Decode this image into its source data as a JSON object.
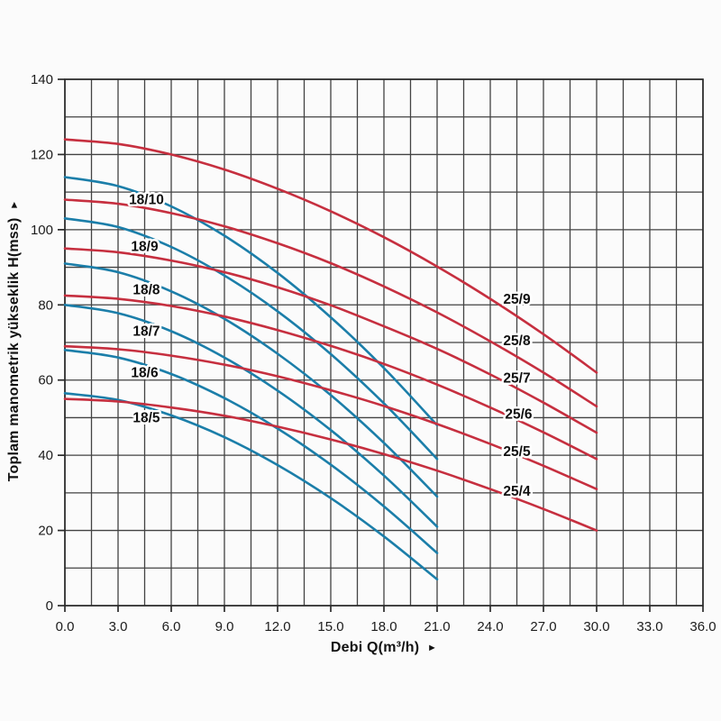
{
  "colors": {
    "family_18": "#1b7ea9",
    "family_25": "#c62f3f",
    "grid": "#424242",
    "axis": "#2b2b2b",
    "tick_text": "#1c1c1c",
    "curve_label_text": "#101010",
    "curve_label_halo": "#ffffff",
    "background": "#fbfbfb"
  },
  "chart_data": {
    "type": "line",
    "title": "",
    "xlabel": "Debi Q(m³/h)",
    "xlabel_arrow": "►",
    "ylabel": "Toplam manometrik yükseklik H(mss)",
    "ylabel_arrow": "►",
    "xlim": [
      0,
      36
    ],
    "ylim": [
      0,
      140
    ],
    "grid": true,
    "x_minor_step": 1.5,
    "y_minor_step": 10,
    "x_tick_values": [
      0,
      3,
      6,
      9,
      12,
      15,
      18,
      21,
      24,
      27,
      30,
      33,
      36
    ],
    "x_tick_labels": [
      "0.0",
      "3.0",
      "6.0",
      "9.0",
      "12.0",
      "15.0",
      "18.0",
      "21.0",
      "24.0",
      "27.0",
      "30.0",
      "33.0",
      "36.0"
    ],
    "y_tick_values": [
      0,
      20,
      40,
      60,
      80,
      100,
      120,
      140
    ],
    "y_tick_labels": [
      "0",
      "20",
      "40",
      "60",
      "80",
      "100",
      "120",
      "140"
    ],
    "legend_position": "curve-labels-inline",
    "series": [
      {
        "name": "18/10",
        "family": "18",
        "points": [
          [
            0,
            114
          ],
          [
            3,
            111.6
          ],
          [
            6,
            106.2
          ],
          [
            9,
            98.4
          ],
          [
            12,
            88.5
          ],
          [
            15,
            76.7
          ],
          [
            18,
            63.2
          ],
          [
            21,
            48
          ]
        ],
        "label_at": [
          4.6,
          108
        ]
      },
      {
        "name": "18/9",
        "family": "18",
        "points": [
          [
            0,
            103
          ],
          [
            3,
            100.7
          ],
          [
            6,
            95.4
          ],
          [
            9,
            87.8
          ],
          [
            12,
            78.3
          ],
          [
            15,
            66.9
          ],
          [
            18,
            53.8
          ],
          [
            21,
            39
          ]
        ],
        "label_at": [
          4.5,
          95.5
        ]
      },
      {
        "name": "18/8",
        "family": "18",
        "points": [
          [
            0,
            91
          ],
          [
            3,
            88.7
          ],
          [
            6,
            83.6
          ],
          [
            9,
            76.3
          ],
          [
            12,
            67
          ],
          [
            15,
            56
          ],
          [
            18,
            43.3
          ],
          [
            21,
            29
          ]
        ],
        "label_at": [
          4.6,
          84
        ]
      },
      {
        "name": "18/7",
        "family": "18",
        "points": [
          [
            0,
            80
          ],
          [
            3,
            77.8
          ],
          [
            6,
            73
          ],
          [
            9,
            66
          ],
          [
            12,
            57.2
          ],
          [
            15,
            46.7
          ],
          [
            18,
            34.6
          ],
          [
            21,
            21
          ]
        ],
        "label_at": [
          4.6,
          73
        ]
      },
      {
        "name": "18/6",
        "family": "18",
        "points": [
          [
            0,
            68
          ],
          [
            3,
            66
          ],
          [
            6,
            61.6
          ],
          [
            9,
            55.2
          ],
          [
            12,
            47.1
          ],
          [
            15,
            37.5
          ],
          [
            18,
            26.4
          ],
          [
            21,
            14
          ]
        ],
        "label_at": [
          4.5,
          62
        ]
      },
      {
        "name": "18/5",
        "family": "18",
        "points": [
          [
            0,
            56.5
          ],
          [
            3,
            54.7
          ],
          [
            6,
            50.6
          ],
          [
            9,
            44.8
          ],
          [
            12,
            37.4
          ],
          [
            15,
            28.6
          ],
          [
            18,
            18.4
          ],
          [
            21,
            7
          ]
        ],
        "label_at": [
          4.6,
          50
        ]
      },
      {
        "name": "25/9",
        "family": "25",
        "points": [
          [
            0,
            124
          ],
          [
            3,
            122.8
          ],
          [
            6,
            120
          ],
          [
            9,
            116
          ],
          [
            12,
            110.9
          ],
          [
            15,
            104.9
          ],
          [
            18,
            98
          ],
          [
            21,
            90.2
          ],
          [
            24,
            81.6
          ],
          [
            27,
            72.2
          ],
          [
            30,
            62
          ]
        ],
        "label_at": [
          25.5,
          81.5
        ]
      },
      {
        "name": "25/8",
        "family": "25",
        "points": [
          [
            0,
            108
          ],
          [
            3,
            106.9
          ],
          [
            6,
            104.4
          ],
          [
            9,
            100.9
          ],
          [
            12,
            96.4
          ],
          [
            15,
            91.1
          ],
          [
            18,
            84.9
          ],
          [
            21,
            78
          ],
          [
            24,
            70.3
          ],
          [
            27,
            62
          ],
          [
            30,
            53
          ]
        ],
        "label_at": [
          25.5,
          70.5
        ]
      },
      {
        "name": "25/7",
        "family": "25",
        "points": [
          [
            0,
            95
          ],
          [
            3,
            94
          ],
          [
            6,
            91.8
          ],
          [
            9,
            88.7
          ],
          [
            12,
            84.7
          ],
          [
            15,
            79.9
          ],
          [
            18,
            74.3
          ],
          [
            21,
            68.3
          ],
          [
            24,
            61.5
          ],
          [
            27,
            54
          ],
          [
            30,
            46
          ]
        ],
        "label_at": [
          25.5,
          60.5
        ]
      },
      {
        "name": "25/6",
        "family": "25",
        "points": [
          [
            0,
            82.5
          ],
          [
            3,
            81.6
          ],
          [
            6,
            79.7
          ],
          [
            9,
            76.9
          ],
          [
            12,
            73.3
          ],
          [
            15,
            69.1
          ],
          [
            18,
            64.3
          ],
          [
            21,
            58.8
          ],
          [
            24,
            52.7
          ],
          [
            27,
            46.1
          ],
          [
            30,
            39
          ]
        ],
        "label_at": [
          25.6,
          51
        ]
      },
      {
        "name": "25/5",
        "family": "25",
        "points": [
          [
            0,
            69
          ],
          [
            3,
            68.2
          ],
          [
            6,
            66.5
          ],
          [
            9,
            64.1
          ],
          [
            12,
            61
          ],
          [
            15,
            57.3
          ],
          [
            18,
            53.1
          ],
          [
            21,
            48.3
          ],
          [
            24,
            43
          ],
          [
            27,
            37.2
          ],
          [
            30,
            31
          ]
        ],
        "label_at": [
          25.5,
          41
        ]
      },
      {
        "name": "25/4",
        "family": "25",
        "points": [
          [
            0,
            55
          ],
          [
            3,
            54.3
          ],
          [
            6,
            52.7
          ],
          [
            9,
            50.5
          ],
          [
            12,
            47.6
          ],
          [
            15,
            44.2
          ],
          [
            18,
            40.3
          ],
          [
            21,
            35.9
          ],
          [
            24,
            31
          ],
          [
            27,
            25.7
          ],
          [
            30,
            20
          ]
        ],
        "label_at": [
          25.5,
          30.5
        ]
      }
    ]
  }
}
